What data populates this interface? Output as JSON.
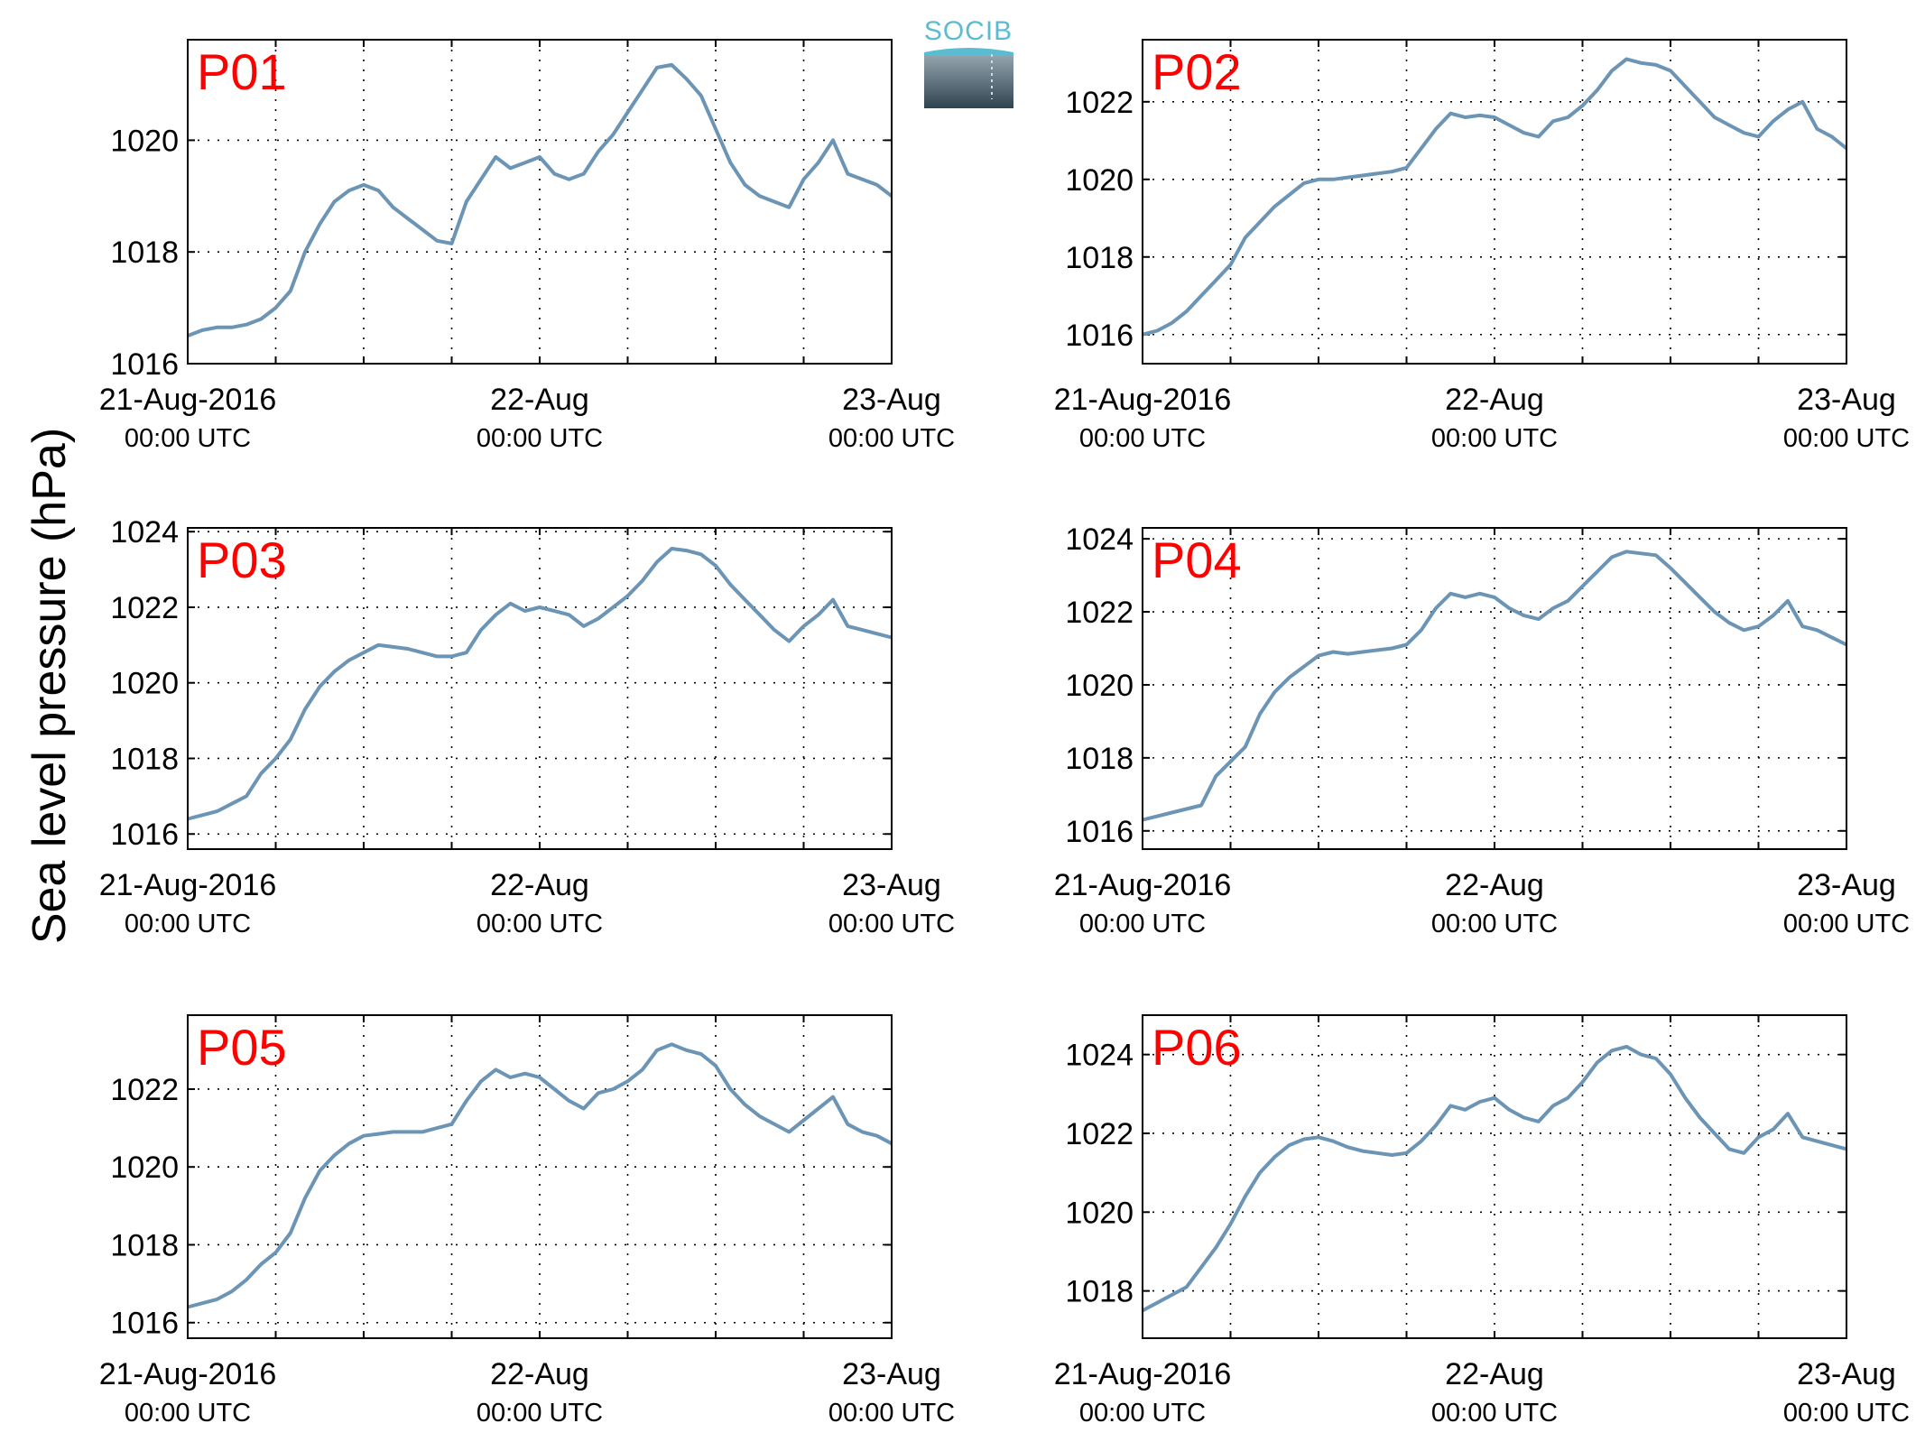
{
  "figure": {
    "ylabel": "Sea level pressure (hPa)",
    "logo_text": "SOCIB",
    "line_color": "#6b94b5",
    "label_color": "#ff0000",
    "x_ticks": [
      {
        "x": 0,
        "line1": "21-Aug-2016",
        "line2": "00:00 UTC"
      },
      {
        "x": 24,
        "line1": "22-Aug",
        "line2": "00:00 UTC"
      },
      {
        "x": 48,
        "line1": "23-Aug",
        "line2": "00:00 UTC"
      }
    ]
  },
  "chart_data": [
    {
      "type": "line",
      "title": "P01",
      "xlabel": "",
      "ylabel": "Sea level pressure (hPa)",
      "x_unit": "hours since 21-Aug-2016 00:00 UTC",
      "xlim": [
        0,
        48
      ],
      "ylim": [
        1016,
        1021.8
      ],
      "yticks": [
        1016,
        1018,
        1020
      ],
      "grid": true,
      "x": [
        0,
        1,
        2,
        3,
        4,
        5,
        6,
        7,
        8,
        9,
        10,
        11,
        12,
        13,
        14,
        15,
        16,
        17,
        18,
        19,
        20,
        21,
        22,
        23,
        24,
        25,
        26,
        27,
        28,
        29,
        30,
        31,
        32,
        33,
        34,
        35,
        36,
        37,
        38,
        39,
        40,
        41,
        42,
        43,
        44,
        45,
        46,
        47,
        48
      ],
      "values": [
        1016.5,
        1016.6,
        1016.65,
        1016.65,
        1016.7,
        1016.8,
        1017.0,
        1017.3,
        1018.0,
        1018.5,
        1018.9,
        1019.1,
        1019.2,
        1019.1,
        1018.8,
        1018.6,
        1018.4,
        1018.2,
        1018.15,
        1018.9,
        1019.3,
        1019.7,
        1019.5,
        1019.6,
        1019.7,
        1019.4,
        1019.3,
        1019.4,
        1019.8,
        1020.1,
        1020.5,
        1020.9,
        1021.3,
        1021.35,
        1021.1,
        1020.8,
        1020.2,
        1019.6,
        1019.2,
        1019.0,
        1018.9,
        1018.8,
        1019.3,
        1019.6,
        1020.0,
        1019.4,
        1019.3,
        1019.2,
        1019.0
      ]
    },
    {
      "type": "line",
      "title": "P02",
      "xlabel": "",
      "ylabel": "Sea level pressure (hPa)",
      "x_unit": "hours since 21-Aug-2016 00:00 UTC",
      "xlim": [
        0,
        48
      ],
      "ylim": [
        1015.25,
        1023.6
      ],
      "yticks": [
        1016,
        1018,
        1020,
        1022
      ],
      "grid": true,
      "x": [
        0,
        1,
        2,
        3,
        4,
        5,
        6,
        7,
        8,
        9,
        10,
        11,
        12,
        13,
        14,
        15,
        16,
        17,
        18,
        19,
        20,
        21,
        22,
        23,
        24,
        25,
        26,
        27,
        28,
        29,
        30,
        31,
        32,
        33,
        34,
        35,
        36,
        37,
        38,
        39,
        40,
        41,
        42,
        43,
        44,
        45,
        46,
        47,
        48
      ],
      "values": [
        1016.0,
        1016.1,
        1016.3,
        1016.6,
        1017.0,
        1017.4,
        1017.8,
        1018.5,
        1018.9,
        1019.3,
        1019.6,
        1019.9,
        1020.0,
        1020.0,
        1020.05,
        1020.1,
        1020.15,
        1020.2,
        1020.3,
        1020.8,
        1021.3,
        1021.7,
        1021.6,
        1021.65,
        1021.6,
        1021.4,
        1021.2,
        1021.1,
        1021.5,
        1021.6,
        1021.9,
        1022.3,
        1022.8,
        1023.1,
        1023.0,
        1022.95,
        1022.8,
        1022.4,
        1022.0,
        1021.6,
        1021.4,
        1021.2,
        1021.1,
        1021.5,
        1021.8,
        1022.0,
        1021.3,
        1021.1,
        1020.8
      ]
    },
    {
      "type": "line",
      "title": "P03",
      "xlabel": "",
      "ylabel": "Sea level pressure (hPa)",
      "x_unit": "hours since 21-Aug-2016 00:00 UTC",
      "xlim": [
        0,
        48
      ],
      "ylim": [
        1015.6,
        1024.1
      ],
      "yticks": [
        1016,
        1018,
        1020,
        1022,
        1024
      ],
      "grid": true,
      "x": [
        0,
        1,
        2,
        3,
        4,
        5,
        6,
        7,
        8,
        9,
        10,
        11,
        12,
        13,
        14,
        15,
        16,
        17,
        18,
        19,
        20,
        21,
        22,
        23,
        24,
        25,
        26,
        27,
        28,
        29,
        30,
        31,
        32,
        33,
        34,
        35,
        36,
        37,
        38,
        39,
        40,
        41,
        42,
        43,
        44,
        45,
        46,
        47,
        48
      ],
      "values": [
        1016.4,
        1016.5,
        1016.6,
        1016.8,
        1017.0,
        1017.6,
        1018.0,
        1018.5,
        1019.3,
        1019.9,
        1020.3,
        1020.6,
        1020.8,
        1021.0,
        1020.95,
        1020.9,
        1020.8,
        1020.7,
        1020.7,
        1020.8,
        1021.4,
        1021.8,
        1022.1,
        1021.9,
        1022.0,
        1021.9,
        1021.8,
        1021.5,
        1021.7,
        1022.0,
        1022.3,
        1022.7,
        1023.2,
        1023.55,
        1023.5,
        1023.4,
        1023.1,
        1022.6,
        1022.2,
        1021.8,
        1021.4,
        1021.1,
        1021.5,
        1021.8,
        1022.2,
        1021.5,
        1021.4,
        1021.3,
        1021.2
      ]
    },
    {
      "type": "line",
      "title": "P04",
      "xlabel": "",
      "ylabel": "Sea level pressure (hPa)",
      "x_unit": "hours since 21-Aug-2016 00:00 UTC",
      "xlim": [
        0,
        48
      ],
      "ylim": [
        1015.5,
        1024.3
      ],
      "yticks": [
        1016,
        1018,
        1020,
        1022,
        1024
      ],
      "grid": true,
      "x": [
        0,
        1,
        2,
        3,
        4,
        5,
        6,
        7,
        8,
        9,
        10,
        11,
        12,
        13,
        14,
        15,
        16,
        17,
        18,
        19,
        20,
        21,
        22,
        23,
        24,
        25,
        26,
        27,
        28,
        29,
        30,
        31,
        32,
        33,
        34,
        35,
        36,
        37,
        38,
        39,
        40,
        41,
        42,
        43,
        44,
        45,
        46,
        47,
        48
      ],
      "values": [
        1016.3,
        1016.4,
        1016.5,
        1016.6,
        1016.7,
        1017.5,
        1017.9,
        1018.3,
        1019.2,
        1019.8,
        1020.2,
        1020.5,
        1020.8,
        1020.9,
        1020.85,
        1020.9,
        1020.95,
        1021.0,
        1021.1,
        1021.5,
        1022.1,
        1022.5,
        1022.4,
        1022.5,
        1022.4,
        1022.1,
        1021.9,
        1021.8,
        1022.1,
        1022.3,
        1022.7,
        1023.1,
        1023.5,
        1023.65,
        1023.6,
        1023.55,
        1023.2,
        1022.8,
        1022.4,
        1022.0,
        1021.7,
        1021.5,
        1021.6,
        1021.9,
        1022.3,
        1021.6,
        1021.5,
        1021.3,
        1021.1
      ]
    },
    {
      "type": "line",
      "title": "P05",
      "xlabel": "",
      "ylabel": "Sea level pressure (hPa)",
      "x_unit": "hours since 21-Aug-2016 00:00 UTC",
      "xlim": [
        0,
        48
      ],
      "ylim": [
        1015.6,
        1023.9
      ],
      "yticks": [
        1016,
        1018,
        1020,
        1022
      ],
      "grid": true,
      "x": [
        0,
        1,
        2,
        3,
        4,
        5,
        6,
        7,
        8,
        9,
        10,
        11,
        12,
        13,
        14,
        15,
        16,
        17,
        18,
        19,
        20,
        21,
        22,
        23,
        24,
        25,
        26,
        27,
        28,
        29,
        30,
        31,
        32,
        33,
        34,
        35,
        36,
        37,
        38,
        39,
        40,
        41,
        42,
        43,
        44,
        45,
        46,
        47,
        48
      ],
      "values": [
        1016.4,
        1016.5,
        1016.6,
        1016.8,
        1017.1,
        1017.5,
        1017.8,
        1018.3,
        1019.2,
        1019.9,
        1020.3,
        1020.6,
        1020.8,
        1020.85,
        1020.9,
        1020.9,
        1020.9,
        1021.0,
        1021.1,
        1021.7,
        1022.2,
        1022.5,
        1022.3,
        1022.4,
        1022.3,
        1022.0,
        1021.7,
        1021.5,
        1021.9,
        1022.0,
        1022.2,
        1022.5,
        1023.0,
        1023.15,
        1023.0,
        1022.9,
        1022.6,
        1022.0,
        1021.6,
        1021.3,
        1021.1,
        1020.9,
        1021.2,
        1021.5,
        1021.8,
        1021.1,
        1020.9,
        1020.8,
        1020.6
      ]
    },
    {
      "type": "line",
      "title": "P06",
      "xlabel": "",
      "ylabel": "Sea level pressure (hPa)",
      "x_unit": "hours since 21-Aug-2016 00:00 UTC",
      "xlim": [
        0,
        48
      ],
      "ylim": [
        1016.8,
        1025.0
      ],
      "yticks": [
        1018,
        1020,
        1022,
        1024
      ],
      "grid": true,
      "x": [
        0,
        1,
        2,
        3,
        4,
        5,
        6,
        7,
        8,
        9,
        10,
        11,
        12,
        13,
        14,
        15,
        16,
        17,
        18,
        19,
        20,
        21,
        22,
        23,
        24,
        25,
        26,
        27,
        28,
        29,
        30,
        31,
        32,
        33,
        34,
        35,
        36,
        37,
        38,
        39,
        40,
        41,
        42,
        43,
        44,
        45,
        46,
        47,
        48
      ],
      "values": [
        1017.5,
        1017.7,
        1017.9,
        1018.1,
        1018.6,
        1019.1,
        1019.7,
        1020.4,
        1021.0,
        1021.4,
        1021.7,
        1021.85,
        1021.9,
        1021.8,
        1021.65,
        1021.55,
        1021.5,
        1021.45,
        1021.5,
        1021.8,
        1022.2,
        1022.7,
        1022.6,
        1022.8,
        1022.9,
        1022.6,
        1022.4,
        1022.3,
        1022.7,
        1022.9,
        1023.3,
        1023.8,
        1024.1,
        1024.2,
        1024.0,
        1023.9,
        1023.5,
        1022.9,
        1022.4,
        1022.0,
        1021.6,
        1021.5,
        1021.9,
        1022.1,
        1022.5,
        1021.9,
        1021.8,
        1021.7,
        1021.6
      ]
    }
  ]
}
